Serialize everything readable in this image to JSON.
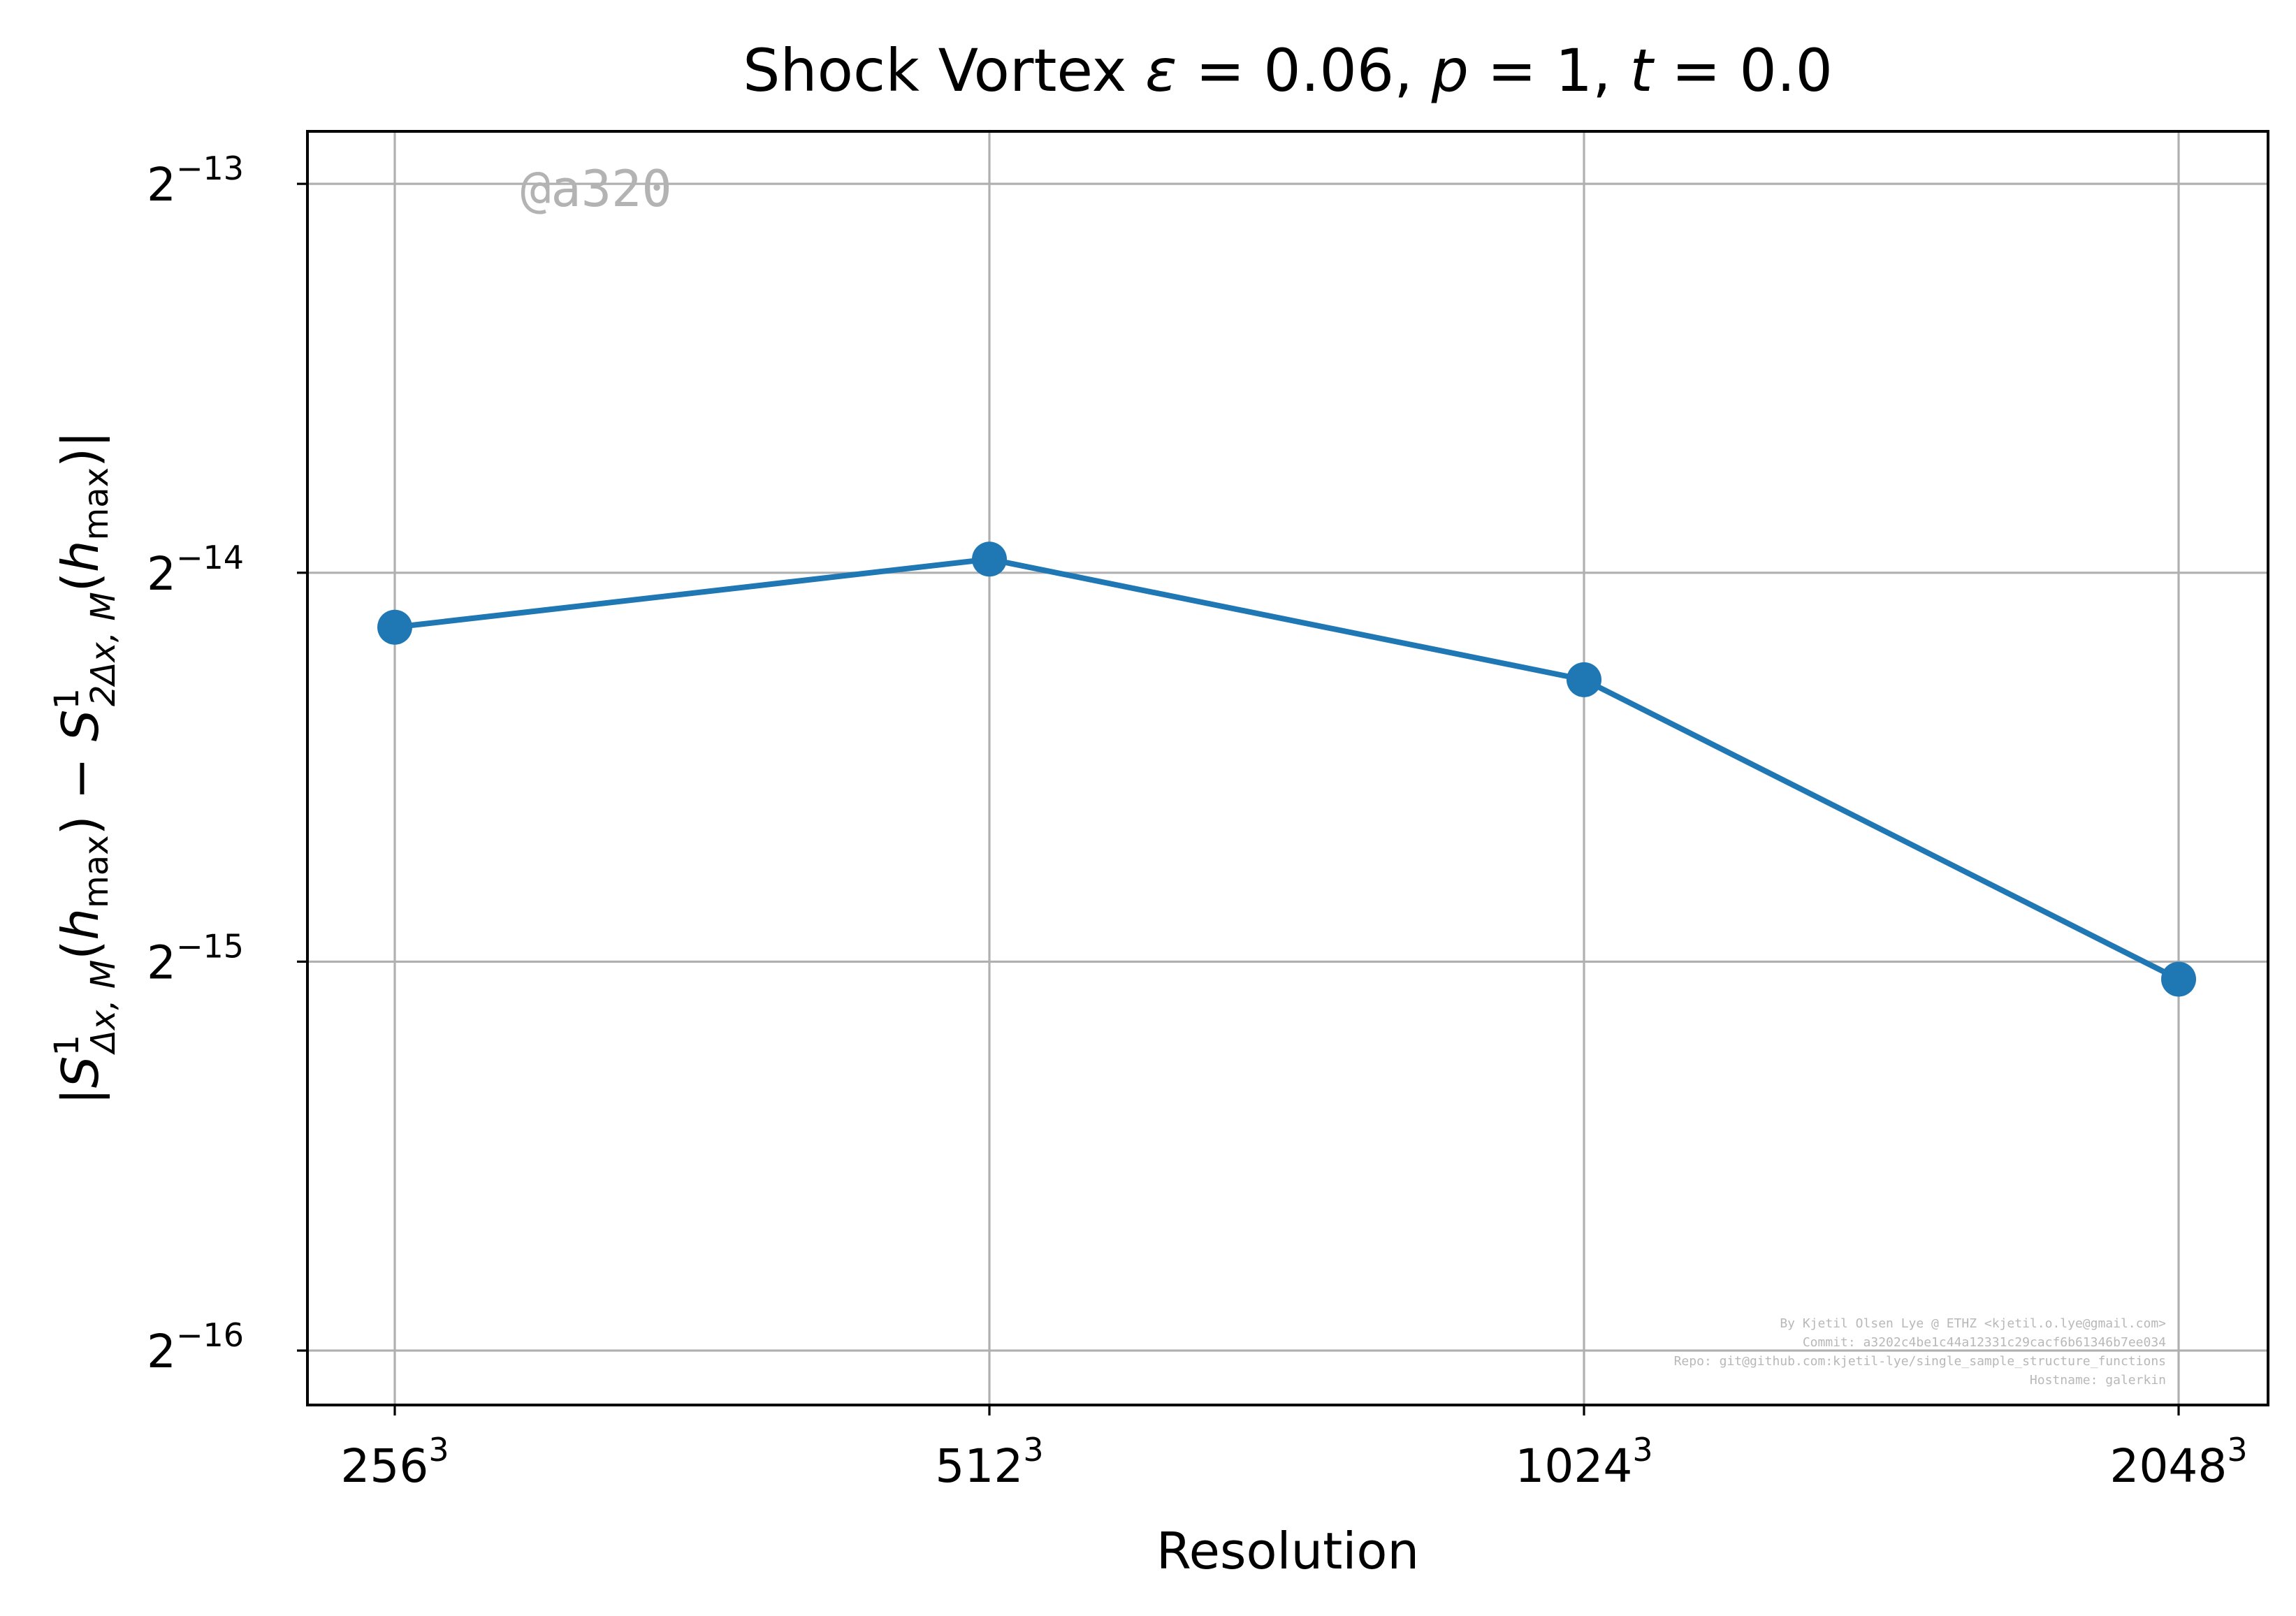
{
  "chart_data": {
    "type": "line",
    "title": "Shock Vortex ε = 0.06, p = 1, t = 0.0",
    "xlabel": "Resolution",
    "ylabel": "|S¹Δx,M(hmax) − S¹2Δx,M(hmax)|",
    "x_scale": "categorical",
    "y_scale": "log2",
    "categories": [
      "256³",
      "512³",
      "1024³",
      "2048³"
    ],
    "categories_parts": [
      [
        "256",
        "3"
      ],
      [
        "512",
        "3"
      ],
      [
        "1024",
        "3"
      ],
      [
        "2048",
        "3"
      ]
    ],
    "y_ticks": [
      -16,
      -15,
      -14,
      -13
    ],
    "y_tick_labels": [
      [
        "2",
        "−16"
      ],
      [
        "2",
        "−15"
      ],
      [
        "2",
        "−14"
      ],
      [
        "2",
        "−13"
      ]
    ],
    "ylim_log2": [
      -16.14,
      -12.865
    ],
    "series": [
      {
        "color": "#1f77b4",
        "log2_values": [
          -14.14,
          -13.965,
          -14.275,
          -15.045
        ]
      }
    ],
    "grid": true,
    "watermark": "@a320",
    "credits": [
      "By Kjetil Olsen Lye @ ETHZ <kjetil.o.lye@gmail.com>",
      "Commit: a3202c4be1c44a12331c29cacf6b61346b7ee034",
      "Repo: git@github.com:kjetil-lye/single_sample_structure_functions",
      "Hostname: galerkin"
    ]
  }
}
